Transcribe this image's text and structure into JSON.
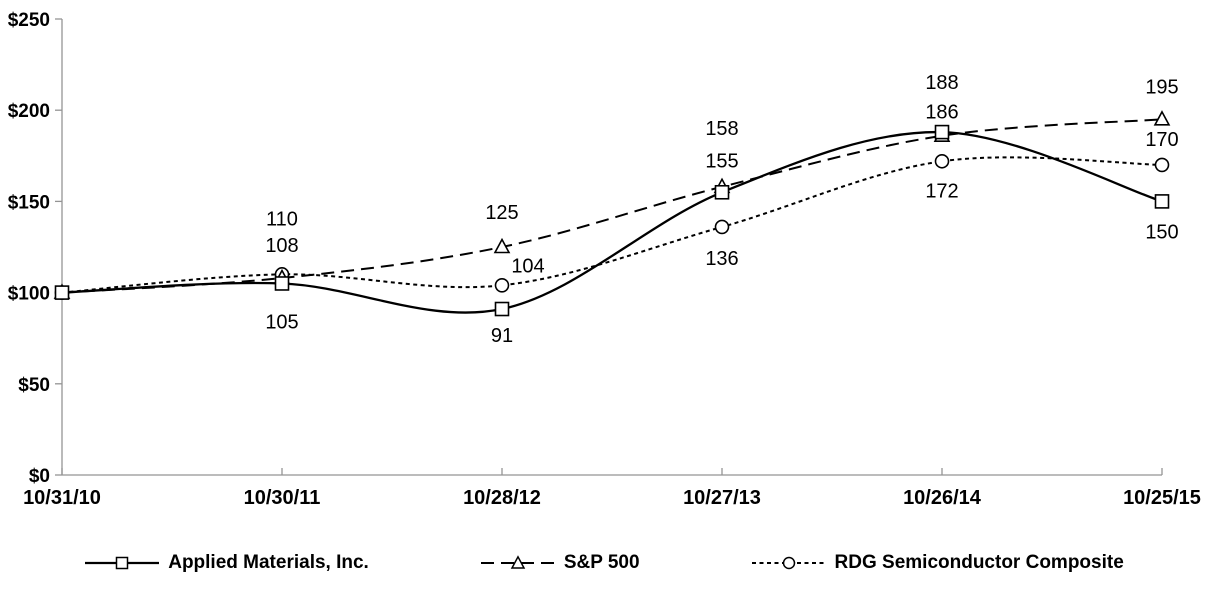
{
  "chart_data": {
    "type": "line",
    "title": "",
    "xlabel": "",
    "ylabel": "",
    "x_labels": [
      "10/31/10",
      "10/30/11",
      "10/28/12",
      "10/27/13",
      "10/26/14",
      "10/25/15"
    ],
    "y_ticks": [
      {
        "label": "$250",
        "value": 250
      },
      {
        "label": "$200",
        "value": 200
      },
      {
        "label": "$150",
        "value": 150
      },
      {
        "label": "$100",
        "value": 100
      },
      {
        "label": "$50",
        "value": 50
      },
      {
        "label": "$0",
        "value": 0
      }
    ],
    "ylim": [
      0,
      250
    ],
    "grid": false,
    "legend_position": "bottom",
    "line_smoothing": true,
    "series": [
      {
        "name": "Applied Materials, Inc.",
        "marker": "square",
        "line_style": "solid",
        "values": [
          100,
          105,
          91,
          155,
          188,
          150
        ],
        "label_offsets": [
          null,
          [
            0,
            38
          ],
          [
            0,
            26
          ],
          [
            0,
            -32
          ],
          [
            0,
            -50
          ],
          [
            0,
            30
          ]
        ]
      },
      {
        "name": "S&P 500",
        "marker": "triangle",
        "line_style": "long-dash",
        "values": [
          100,
          108,
          125,
          158,
          186,
          195
        ],
        "label_offsets": [
          null,
          [
            0,
            -33
          ],
          [
            0,
            -35
          ],
          [
            0,
            -59
          ],
          [
            0,
            -24
          ],
          [
            0,
            -33
          ]
        ]
      },
      {
        "name": "RDG Semiconductor Composite",
        "marker": "circle",
        "line_style": "short-dash",
        "values": [
          100,
          110,
          104,
          136,
          172,
          170
        ],
        "label_offsets": [
          null,
          [
            0,
            -56
          ],
          [
            26,
            -20
          ],
          [
            0,
            31
          ],
          [
            0,
            29
          ],
          [
            0,
            -26
          ]
        ]
      }
    ],
    "colors": {
      "line": "#000000",
      "marker_fill": "#ffffff",
      "axis": "#949494",
      "text": "#000000",
      "background": "#ffffff"
    }
  }
}
